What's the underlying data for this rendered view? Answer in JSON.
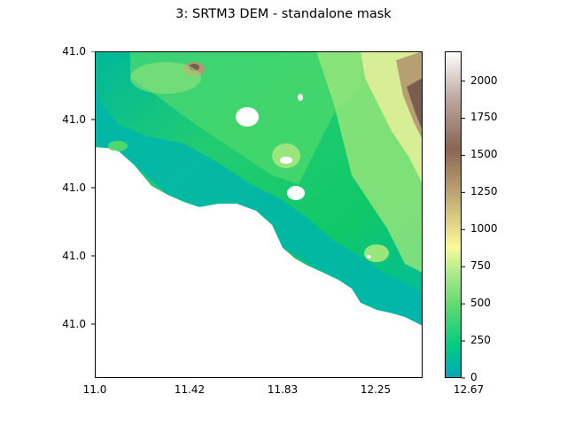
{
  "chart_data": {
    "type": "heatmap",
    "title": "3: SRTM3 DEM - standalone mask",
    "xlabel": "",
    "ylabel": "",
    "xticks": [
      "11.0",
      "11.42",
      "11.83",
      "12.25",
      "12.67"
    ],
    "yticks": [
      "41.0",
      "41.0",
      "41.0",
      "41.0",
      "41.0"
    ],
    "colorbar": {
      "colormap": "terrain",
      "range": [
        0,
        2200
      ],
      "ticks": [
        "0",
        "250",
        "500",
        "750",
        "1000",
        "1250",
        "1500",
        "1750",
        "2000"
      ],
      "tick_values": [
        0,
        250,
        500,
        750,
        1000,
        1250,
        1500,
        1750,
        2000
      ]
    },
    "colors": {
      "sea": "#00b2b2",
      "lowland": "#12c86a",
      "plain": "#4ed86e",
      "hills": "#9ae67c",
      "upland": "#e6f09c",
      "mountain": "#b49670",
      "peak": "#7a5c50",
      "masked": "#ffffff"
    }
  }
}
